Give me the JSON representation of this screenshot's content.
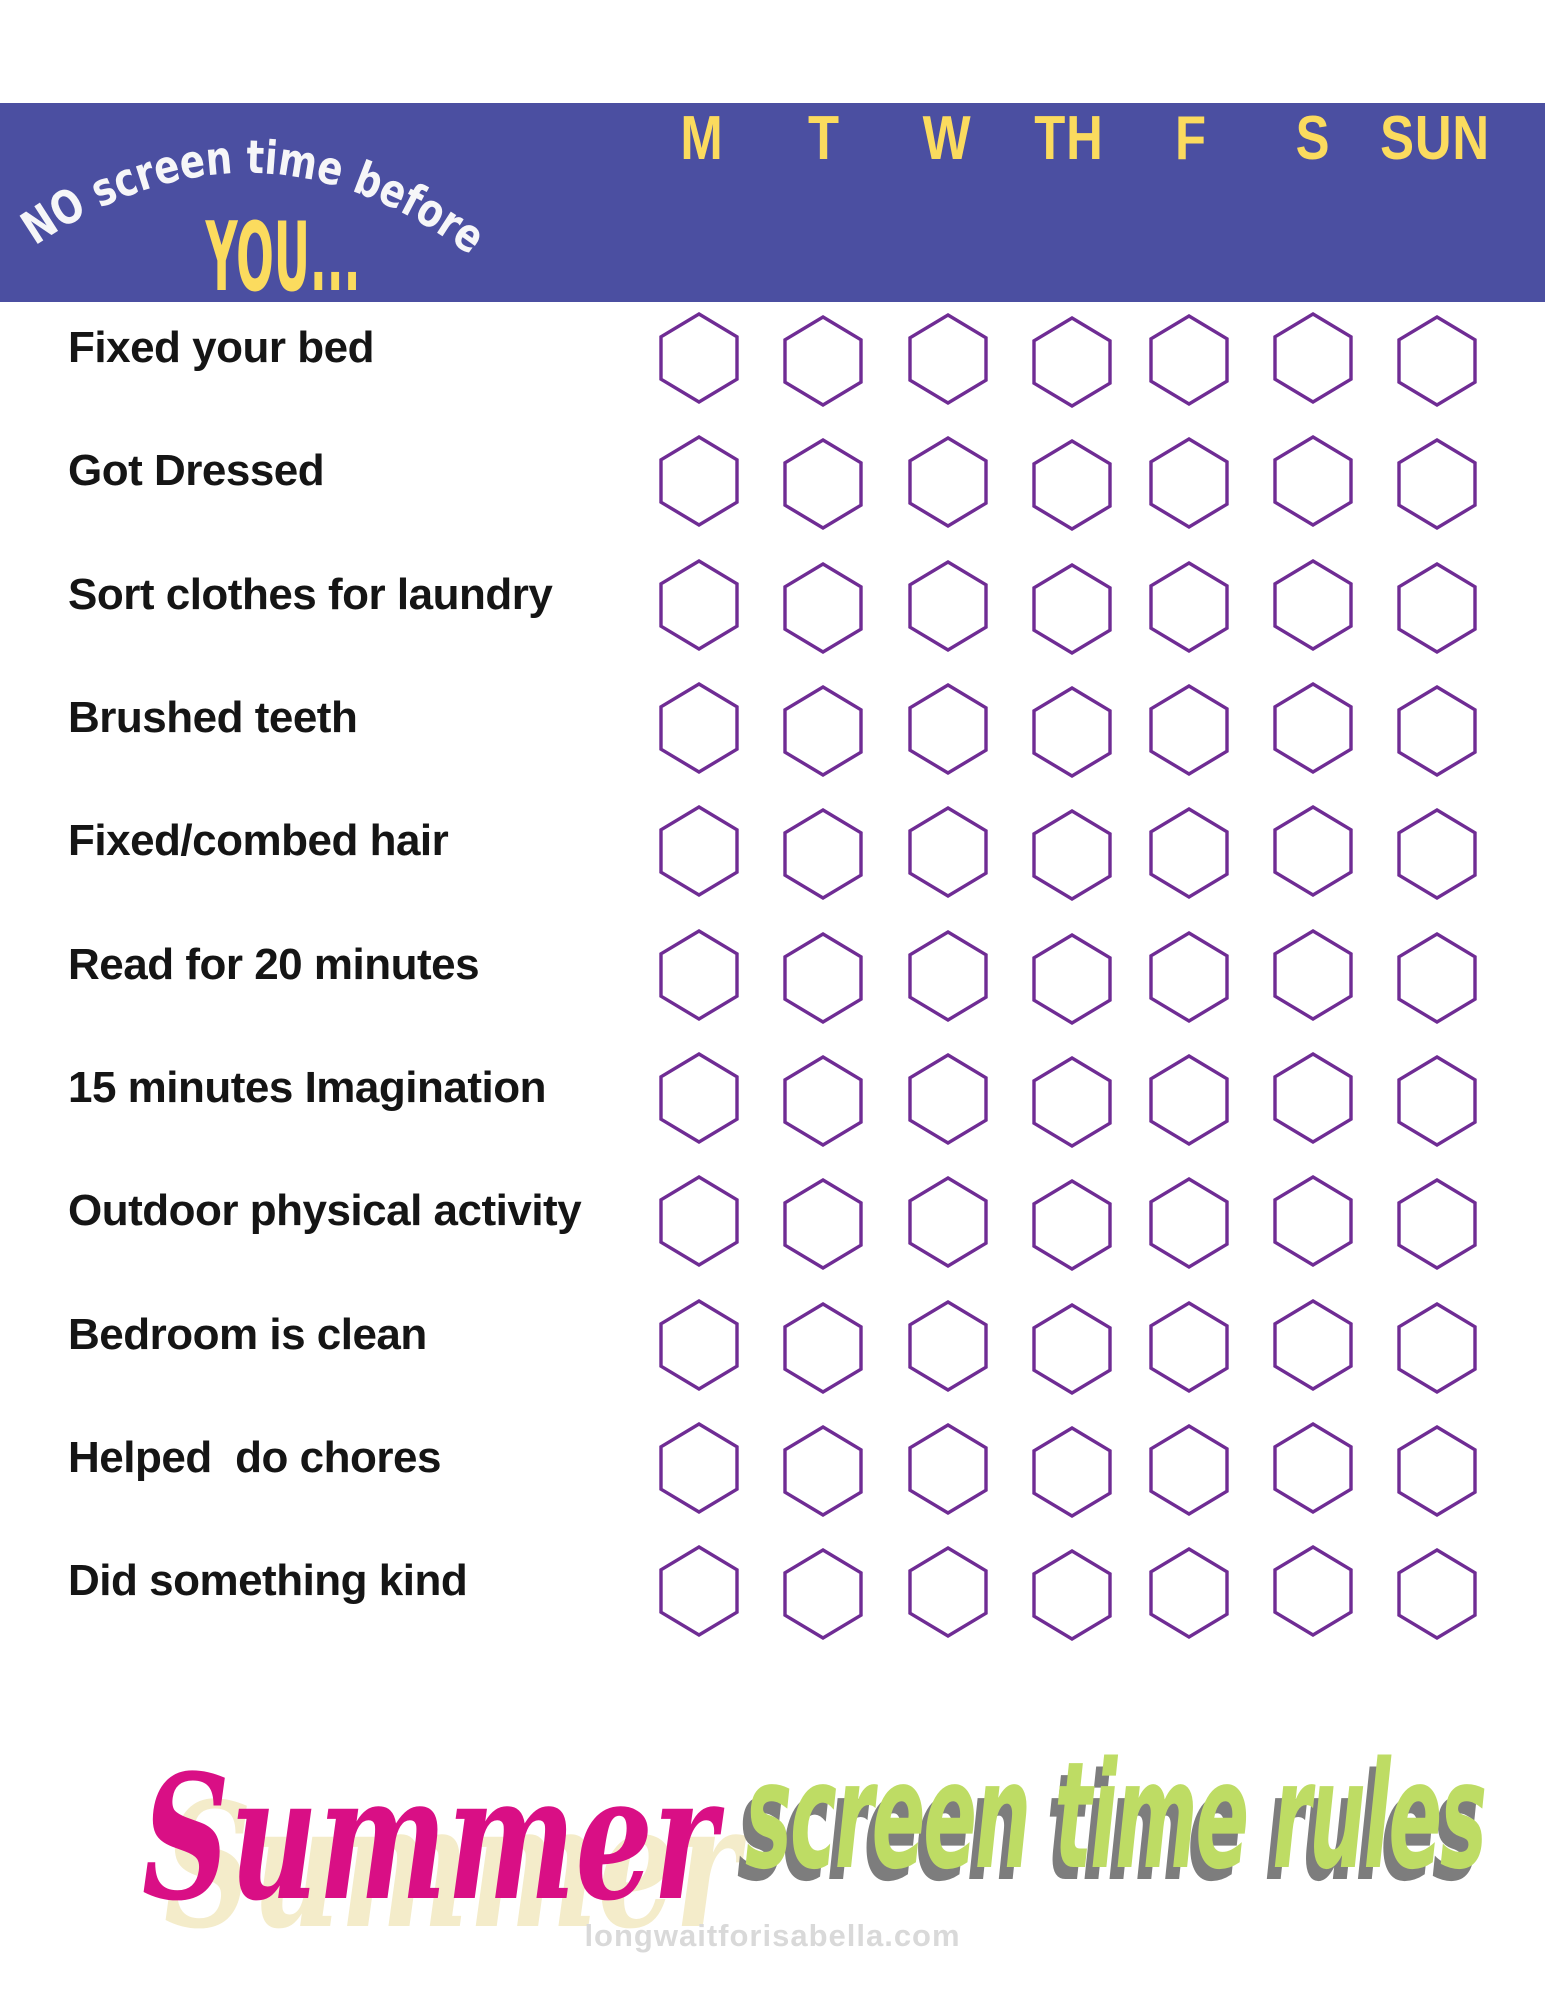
{
  "banner": {
    "arch_text": "NO screen time before",
    "subject": "YOU...",
    "bg_color": "#4b4fa1",
    "script_color": "#f6f6f8",
    "accent_color": "#fbdb5e"
  },
  "days": [
    "M",
    "T",
    "W",
    "TH",
    "F",
    "S",
    "SUN"
  ],
  "chores": [
    "Fixed your bed",
    "Got Dressed",
    "Sort clothes for laundry",
    "Brushed teeth",
    "Fixed/combed hair",
    "Read for 20 minutes",
    "15 minutes Imagination",
    "Outdoor physical activity",
    "Bedroom is clean",
    "Helped  do chores",
    "Did something kind"
  ],
  "checkbox_grid": {
    "shape": "hexagon-outline",
    "outline_color": "#6f2c94",
    "columns_per_row": 7,
    "rows": 11,
    "state": "all empty / unchecked"
  },
  "footer_title": {
    "word1": "Summer",
    "word1_color": "#d90f85",
    "word1_shadow_color": "#f4ecca",
    "word2": "screen time rules",
    "word2_color": "#bedc64",
    "word2_shadow_color": "#7d7d7d"
  },
  "website": "longwaitforisabella.com"
}
